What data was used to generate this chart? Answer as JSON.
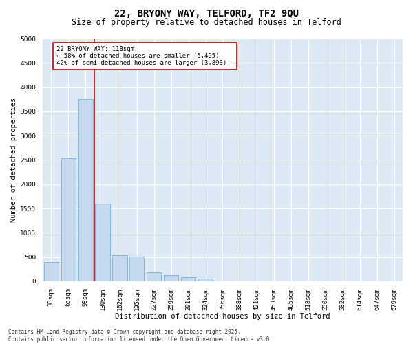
{
  "title_line1": "22, BRYONY WAY, TELFORD, TF2 9QU",
  "title_line2": "Size of property relative to detached houses in Telford",
  "xlabel": "Distribution of detached houses by size in Telford",
  "ylabel": "Number of detached properties",
  "categories": [
    "33sqm",
    "65sqm",
    "98sqm",
    "130sqm",
    "162sqm",
    "195sqm",
    "227sqm",
    "259sqm",
    "291sqm",
    "324sqm",
    "356sqm",
    "388sqm",
    "421sqm",
    "453sqm",
    "485sqm",
    "518sqm",
    "550sqm",
    "582sqm",
    "614sqm",
    "647sqm",
    "679sqm"
  ],
  "values": [
    390,
    2530,
    3750,
    1600,
    540,
    510,
    180,
    130,
    90,
    50,
    0,
    0,
    0,
    0,
    0,
    0,
    0,
    0,
    0,
    0,
    0
  ],
  "bar_color": "#c5d9ef",
  "bar_edge_color": "#7bafd4",
  "vline_color": "#cc0000",
  "annotation_text": "22 BRYONY WAY: 118sqm\n← 58% of detached houses are smaller (5,405)\n42% of semi-detached houses are larger (3,893) →",
  "annotation_box_facecolor": "#ffffff",
  "annotation_box_edgecolor": "#cc0000",
  "ylim": [
    0,
    5000
  ],
  "yticks": [
    0,
    500,
    1000,
    1500,
    2000,
    2500,
    3000,
    3500,
    4000,
    4500,
    5000
  ],
  "fig_facecolor": "#ffffff",
  "ax_facecolor": "#dce9f5",
  "grid_color": "#ffffff",
  "footer_line1": "Contains HM Land Registry data © Crown copyright and database right 2025.",
  "footer_line2": "Contains public sector information licensed under the Open Government Licence v3.0.",
  "title_fontsize": 10,
  "subtitle_fontsize": 8.5,
  "axis_label_fontsize": 7.5,
  "tick_fontsize": 6.5,
  "annotation_fontsize": 6.5,
  "footer_fontsize": 5.5
}
